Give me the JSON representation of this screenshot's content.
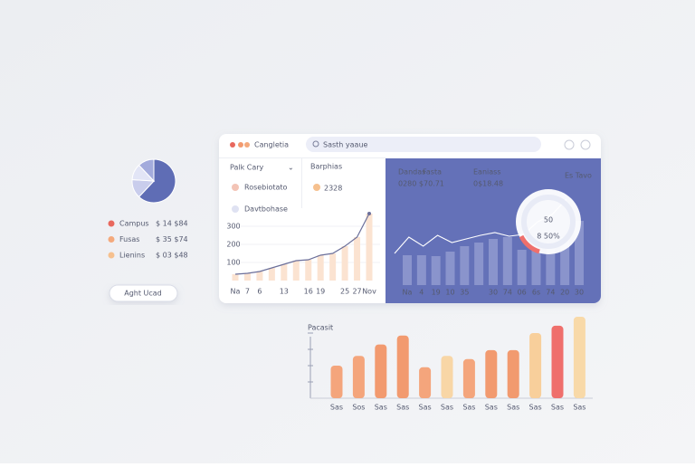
{
  "pie": {
    "values": [
      62,
      14,
      12,
      12
    ],
    "colors": [
      "#5f6db5",
      "#c9cdec",
      "#e2e5f6",
      "#a3abdc"
    ]
  },
  "legend": [
    {
      "label": "Campus",
      "value": "$ 14 $84",
      "color": "#e8685e"
    },
    {
      "label": "Fusas",
      "value": "$ 35 $74",
      "color": "#f4a97c"
    },
    {
      "label": "Lienins",
      "value": "$ 03 $48",
      "color": "#f6c08e"
    }
  ],
  "button": "Aght Ucad",
  "header": {
    "title": "Cangletia",
    "search": "Sasth yaaue"
  },
  "sidebar": {
    "title": "Palk Cary",
    "items": [
      "Rosebiotato",
      "Davtbohase"
    ]
  },
  "panel": {
    "title": "Barphias",
    "value": "2328"
  },
  "line_chart": {
    "type": "line",
    "categories": [
      "Na",
      "7",
      "6",
      null,
      "13",
      null,
      "16",
      "19",
      null,
      "25",
      "27",
      "Nov"
    ],
    "values": [
      35,
      40,
      50,
      70,
      90,
      110,
      115,
      140,
      150,
      190,
      240,
      370
    ],
    "ylim": [
      0,
      400
    ],
    "yticks": [
      300,
      200,
      100
    ],
    "color": "#6b6f9a"
  },
  "blue_panel": {
    "stats": [
      {
        "label": "Dandas",
        "extra": "Fasta",
        "value": "0280 $70.71"
      },
      {
        "label": "Eaniass",
        "value": "0$18.48"
      }
    ],
    "dropdown": "Es Tavo",
    "chart": {
      "type": "bar",
      "categories": [
        "Na",
        "4",
        "19",
        "10",
        "35",
        null,
        "30",
        "74",
        "06",
        "6s",
        "74",
        "20",
        "30"
      ],
      "values": [
        33,
        33,
        32,
        37,
        43,
        47,
        51,
        53,
        39,
        39,
        45,
        53,
        71
      ],
      "line": [
        35,
        53,
        43,
        55,
        47,
        51,
        55,
        58,
        54,
        56,
        70,
        78,
        95
      ],
      "ylim": [
        0,
        100
      ]
    },
    "donut": {
      "value": "50",
      "sublabel": "8 50%"
    }
  },
  "bar_chart": {
    "type": "bar",
    "title": "Pacasit",
    "categories": [
      "Sas",
      "Sos",
      "Sas",
      "Sas",
      "Sas",
      "Sas",
      "Sas",
      "Sas",
      "Sas",
      "Sas",
      "Sas",
      "Sas"
    ],
    "values": [
      40,
      52,
      66,
      77,
      38,
      52,
      48,
      59,
      59,
      80,
      89,
      100
    ],
    "colors": [
      "#f4a57c",
      "#f4a57c",
      "#f29a6f",
      "#f29a6f",
      "#f4a57c",
      "#f8d6a6",
      "#f4a57c",
      "#f29a6f",
      "#f29a6f",
      "#f8cf9b",
      "#ef6f6c",
      "#f8d9a8"
    ],
    "ylim": [
      0,
      100
    ],
    "yticks": [
      20,
      40,
      60,
      80
    ]
  }
}
